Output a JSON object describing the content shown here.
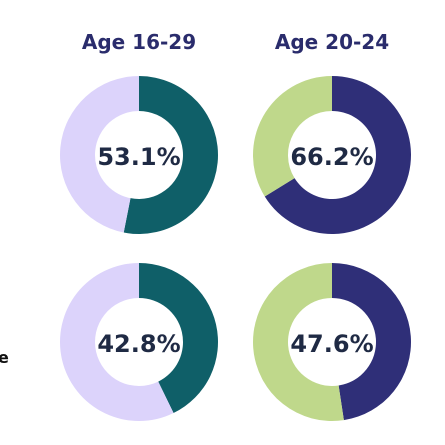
{
  "column_titles": [
    "Age 16-29",
    "Age 20-24"
  ],
  "edge_label": "e",
  "colors": {
    "teal": "#0f5f68",
    "lavender": "#dcd3fb",
    "navy": "#2f2f78",
    "green": "#bfd88b",
    "text": "#1f2a44"
  },
  "chart_data": [
    {
      "type": "pie",
      "title": "Age 16-29",
      "center_label": "53.1%",
      "values": [
        53.1,
        46.9
      ],
      "colors": [
        "#0f5f68",
        "#dcd3fb"
      ]
    },
    {
      "type": "pie",
      "title": "Age 20-24",
      "center_label": "66.2%",
      "values": [
        66.2,
        33.8
      ],
      "colors": [
        "#2f2f78",
        "#bfd88b"
      ]
    },
    {
      "type": "pie",
      "title": "",
      "center_label": "42.8%",
      "values": [
        42.8,
        57.2
      ],
      "colors": [
        "#0f5f68",
        "#dcd3fb"
      ]
    },
    {
      "type": "pie",
      "title": "",
      "center_label": "47.6%",
      "values": [
        47.6,
        52.4
      ],
      "colors": [
        "#2f2f78",
        "#bfd88b"
      ]
    }
  ]
}
